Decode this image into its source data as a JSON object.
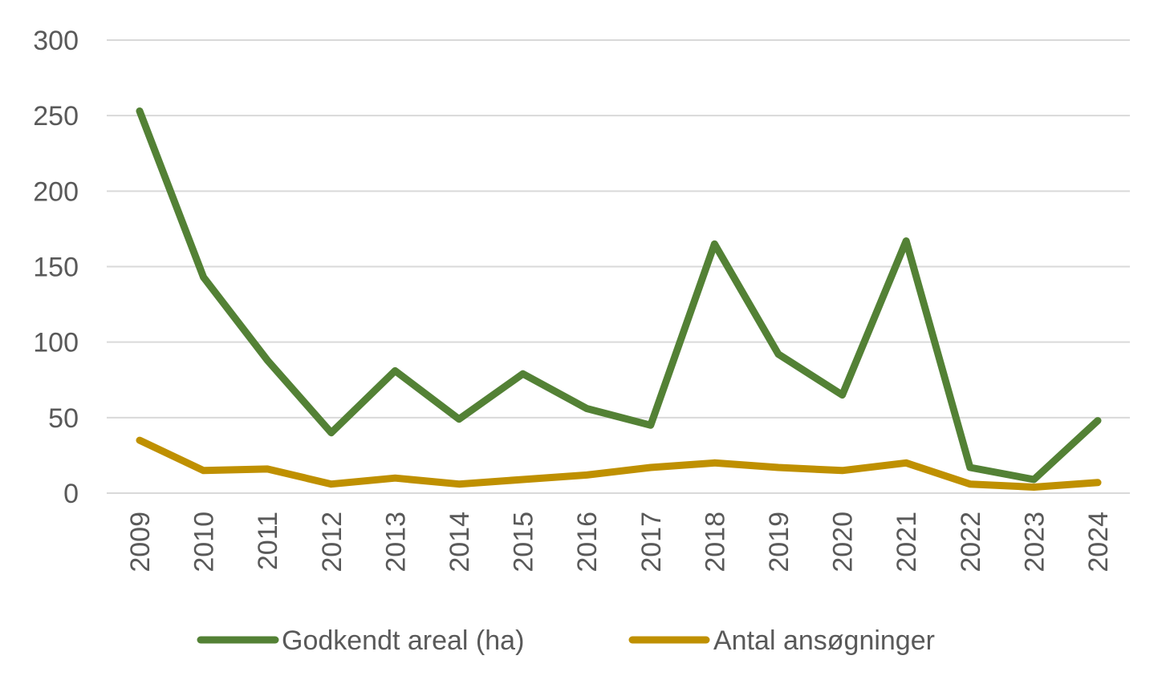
{
  "chart_data": {
    "type": "line",
    "title": "",
    "xlabel": "",
    "ylabel": "",
    "categories": [
      "2009",
      "2010",
      "2011",
      "2012",
      "2013",
      "2014",
      "2015",
      "2016",
      "2017",
      "2018",
      "2019",
      "2020",
      "2021",
      "2022",
      "2023",
      "2024"
    ],
    "ylim": [
      0,
      300
    ],
    "yticks": [
      "0",
      "50",
      "100",
      "150",
      "200",
      "250",
      "300"
    ],
    "grid": true,
    "legend_position": "bottom",
    "series": [
      {
        "name": "Godkendt areal (ha)",
        "color": "#538135",
        "values": [
          253,
          143,
          88,
          40,
          81,
          49,
          79,
          56,
          45,
          165,
          92,
          65,
          167,
          17,
          9,
          48
        ]
      },
      {
        "name": "Antal ansøgninger",
        "color": "#bf9000",
        "values": [
          35,
          15,
          16,
          6,
          10,
          6,
          9,
          12,
          17,
          20,
          17,
          15,
          20,
          6,
          4,
          7
        ]
      }
    ]
  }
}
